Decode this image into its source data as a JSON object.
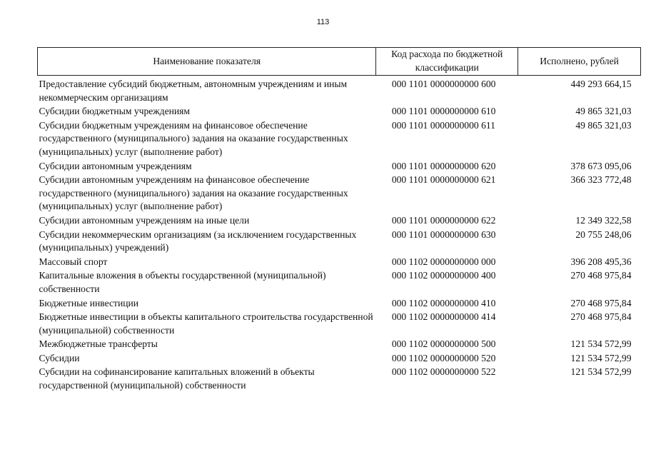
{
  "page_number": "113",
  "table": {
    "headers": [
      "Наименование показателя",
      "Код расхода по бюджетной классификации",
      "Исполнено, рублей"
    ],
    "rows": [
      {
        "name": "Предоставление субсидий бюджетным, автономным учреждениям и иным некоммерческим организациям",
        "code": "000 1101 0000000000 600",
        "amount": "449 293 664,15"
      },
      {
        "name": "Субсидии бюджетным учреждениям",
        "code": "000 1101 0000000000 610",
        "amount": "49 865 321,03"
      },
      {
        "name": "Субсидии бюджетным учреждениям на финансовое обеспечение государственного (муниципального) задания на оказание государственных (муниципальных) услуг (выполнение работ)",
        "code": "000 1101 0000000000 611",
        "amount": "49 865 321,03"
      },
      {
        "name": "Субсидии автономным учреждениям",
        "code": "000 1101 0000000000 620",
        "amount": "378 673 095,06"
      },
      {
        "name": "Субсидии автономным учреждениям на финансовое обеспечение государственного (муниципального) задания на оказание государственных (муниципальных) услуг (выполнение работ)",
        "code": "000 1101 0000000000 621",
        "amount": "366 323 772,48"
      },
      {
        "name": "Субсидии автономным учреждениям на иные цели",
        "code": "000 1101 0000000000 622",
        "amount": "12 349 322,58"
      },
      {
        "name": "Субсидии некоммерческим организациям (за исключением государственных (муниципальных) учреждений)",
        "code": "000 1101 0000000000 630",
        "amount": "20 755 248,06"
      },
      {
        "name": "Массовый спорт",
        "code": "000 1102 0000000000 000",
        "amount": "396 208 495,36"
      },
      {
        "name": "Капитальные вложения в объекты государственной (муниципальной) собственности",
        "code": "000 1102 0000000000 400",
        "amount": "270 468 975,84"
      },
      {
        "name": "Бюджетные инвестиции",
        "code": "000 1102 0000000000 410",
        "amount": "270 468 975,84"
      },
      {
        "name": "Бюджетные инвестиции в объекты капитального строительства государственной (муниципальной) собственности",
        "code": "000 1102 0000000000 414",
        "amount": "270 468 975,84"
      },
      {
        "name": "Межбюджетные трансферты",
        "code": "000 1102 0000000000 500",
        "amount": "121 534 572,99"
      },
      {
        "name": "Субсидии",
        "code": "000 1102 0000000000 520",
        "amount": "121 534 572,99"
      },
      {
        "name": "Субсидии на софинансирование капитальных вложений в объекты государственной (муниципальной) собственности",
        "code": "000 1102 0000000000 522",
        "amount": "121 534 572,99"
      }
    ]
  }
}
